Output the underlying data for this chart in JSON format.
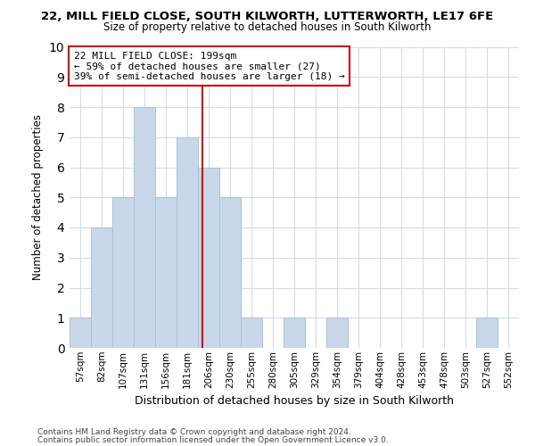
{
  "title": "22, MILL FIELD CLOSE, SOUTH KILWORTH, LUTTERWORTH, LE17 6FE",
  "subtitle": "Size of property relative to detached houses in South Kilworth",
  "xlabel": "Distribution of detached houses by size in South Kilworth",
  "ylabel": "Number of detached properties",
  "footnote1": "Contains HM Land Registry data © Crown copyright and database right 2024.",
  "footnote2": "Contains public sector information licensed under the Open Government Licence v3.0.",
  "bin_labels": [
    "57sqm",
    "82sqm",
    "107sqm",
    "131sqm",
    "156sqm",
    "181sqm",
    "206sqm",
    "230sqm",
    "255sqm",
    "280sqm",
    "305sqm",
    "329sqm",
    "354sqm",
    "379sqm",
    "404sqm",
    "428sqm",
    "453sqm",
    "478sqm",
    "503sqm",
    "527sqm",
    "552sqm"
  ],
  "bar_heights": [
    1,
    4,
    5,
    8,
    5,
    7,
    6,
    5,
    1,
    0,
    1,
    0,
    1,
    0,
    0,
    0,
    0,
    0,
    0,
    1,
    0
  ],
  "bar_color": "#c8d8ea",
  "bar_edgecolor": "#a8c0d8",
  "vline_color": "#cc0000",
  "ylim": [
    0,
    10
  ],
  "yticks": [
    0,
    1,
    2,
    3,
    4,
    5,
    6,
    7,
    8,
    9,
    10
  ],
  "annotation_line1": "22 MILL FIELD CLOSE: 199sqm",
  "annotation_line2": "← 59% of detached houses are smaller (27)",
  "annotation_line3": "39% of semi-detached houses are larger (18) →",
  "annotation_box_facecolor": "white",
  "annotation_box_edgecolor": "#cc0000",
  "grid_color": "#d0dce8",
  "background_color": "white",
  "title_fontsize": 9.5,
  "subtitle_fontsize": 8.5,
  "ylabel_fontsize": 8.5,
  "xlabel_fontsize": 9,
  "annotation_fontsize": 8,
  "footnote_fontsize": 6.5
}
